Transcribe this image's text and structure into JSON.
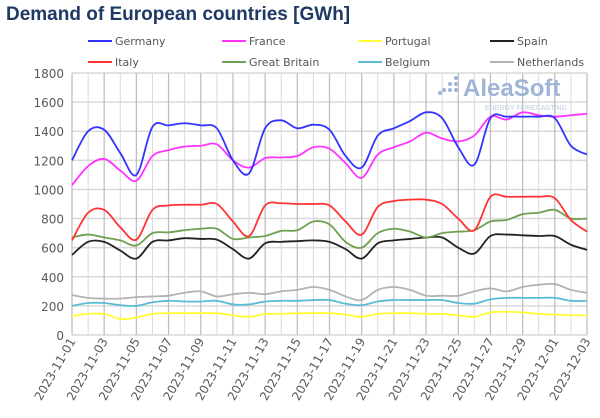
{
  "title": "Demand of European countries [GWh]",
  "watermark": {
    "brand": "AleaSoft",
    "tagline": "ENERGY FORECASTING"
  },
  "chart_data": {
    "type": "line",
    "title": "Demand of European countries [GWh]",
    "ylim": [
      0,
      1800
    ],
    "yticks": [
      0,
      200,
      400,
      600,
      800,
      1000,
      1200,
      1400,
      1600,
      1800
    ],
    "grid": true,
    "legend_placement": "top",
    "x": [
      "2023-11-01",
      "2023-11-02",
      "2023-11-03",
      "2023-11-04",
      "2023-11-05",
      "2023-11-06",
      "2023-11-07",
      "2023-11-08",
      "2023-11-09",
      "2023-11-10",
      "2023-11-11",
      "2023-11-12",
      "2023-11-13",
      "2023-11-14",
      "2023-11-15",
      "2023-11-16",
      "2023-11-17",
      "2023-11-18",
      "2023-11-19",
      "2023-11-20",
      "2023-11-21",
      "2023-11-22",
      "2023-11-23",
      "2023-11-24",
      "2023-11-25",
      "2023-11-26",
      "2023-11-27",
      "2023-11-28",
      "2023-11-29",
      "2023-11-30",
      "2023-12-01",
      "2023-12-02",
      "2023-12-03"
    ],
    "xtick_labels": [
      "2023-11-01",
      "2023-11-03",
      "2023-11-05",
      "2023-11-07",
      "2023-11-09",
      "2023-11-11",
      "2023-11-13",
      "2023-11-15",
      "2023-11-17",
      "2023-11-19",
      "2023-11-21",
      "2023-11-23",
      "2023-11-25",
      "2023-11-27",
      "2023-11-29",
      "2023-12-01",
      "2023-12-03"
    ],
    "series": [
      {
        "name": "Germany",
        "color": "#3333ff",
        "values": [
          1200,
          1400,
          1410,
          1250,
          1100,
          1430,
          1440,
          1455,
          1440,
          1420,
          1200,
          1110,
          1420,
          1475,
          1420,
          1445,
          1410,
          1230,
          1150,
          1370,
          1420,
          1470,
          1530,
          1490,
          1290,
          1170,
          1490,
          1500,
          1500,
          1500,
          1490,
          1300,
          1240
        ]
      },
      {
        "name": "France",
        "color": "#ff33ff",
        "values": [
          1030,
          1160,
          1210,
          1130,
          1060,
          1230,
          1270,
          1295,
          1300,
          1310,
          1200,
          1150,
          1215,
          1220,
          1230,
          1290,
          1280,
          1180,
          1080,
          1240,
          1290,
          1330,
          1390,
          1350,
          1330,
          1370,
          1500,
          1480,
          1530,
          1510,
          1500,
          1510,
          1520
        ]
      },
      {
        "name": "Portugal",
        "color": "#ffff33",
        "values": [
          130,
          145,
          145,
          110,
          120,
          145,
          150,
          150,
          150,
          150,
          135,
          125,
          145,
          145,
          150,
          150,
          150,
          140,
          125,
          145,
          150,
          150,
          145,
          145,
          135,
          125,
          155,
          160,
          155,
          145,
          140,
          135,
          135
        ]
      },
      {
        "name": "Spain",
        "color": "#222222",
        "values": [
          550,
          640,
          640,
          580,
          525,
          640,
          650,
          665,
          660,
          655,
          590,
          525,
          630,
          640,
          645,
          650,
          640,
          590,
          525,
          630,
          650,
          660,
          670,
          670,
          600,
          560,
          680,
          690,
          685,
          680,
          680,
          620,
          585
        ]
      },
      {
        "name": "Italy",
        "color": "#ff3333",
        "values": [
          650,
          840,
          860,
          740,
          655,
          860,
          890,
          895,
          895,
          900,
          780,
          680,
          890,
          905,
          900,
          900,
          890,
          780,
          690,
          880,
          920,
          930,
          930,
          900,
          800,
          720,
          950,
          950,
          950,
          950,
          940,
          790,
          710
        ]
      },
      {
        "name": "Great Britain",
        "color": "#70a050",
        "values": [
          670,
          690,
          670,
          650,
          615,
          700,
          705,
          720,
          730,
          730,
          660,
          670,
          680,
          715,
          720,
          780,
          760,
          640,
          600,
          700,
          730,
          710,
          670,
          700,
          710,
          720,
          780,
          790,
          830,
          840,
          860,
          800,
          800
        ]
      },
      {
        "name": "Belgium",
        "color": "#5bbcd6",
        "values": [
          200,
          220,
          220,
          205,
          200,
          225,
          235,
          230,
          230,
          235,
          210,
          210,
          230,
          235,
          235,
          240,
          240,
          215,
          205,
          230,
          240,
          240,
          240,
          240,
          220,
          215,
          245,
          255,
          255,
          255,
          255,
          235,
          235
        ]
      },
      {
        "name": "Netherlands",
        "color": "#b3b3b3",
        "values": [
          275,
          255,
          250,
          250,
          260,
          265,
          270,
          290,
          300,
          265,
          280,
          290,
          280,
          300,
          310,
          330,
          310,
          265,
          240,
          310,
          330,
          310,
          270,
          270,
          270,
          300,
          320,
          300,
          330,
          345,
          350,
          310,
          290
        ]
      }
    ]
  }
}
